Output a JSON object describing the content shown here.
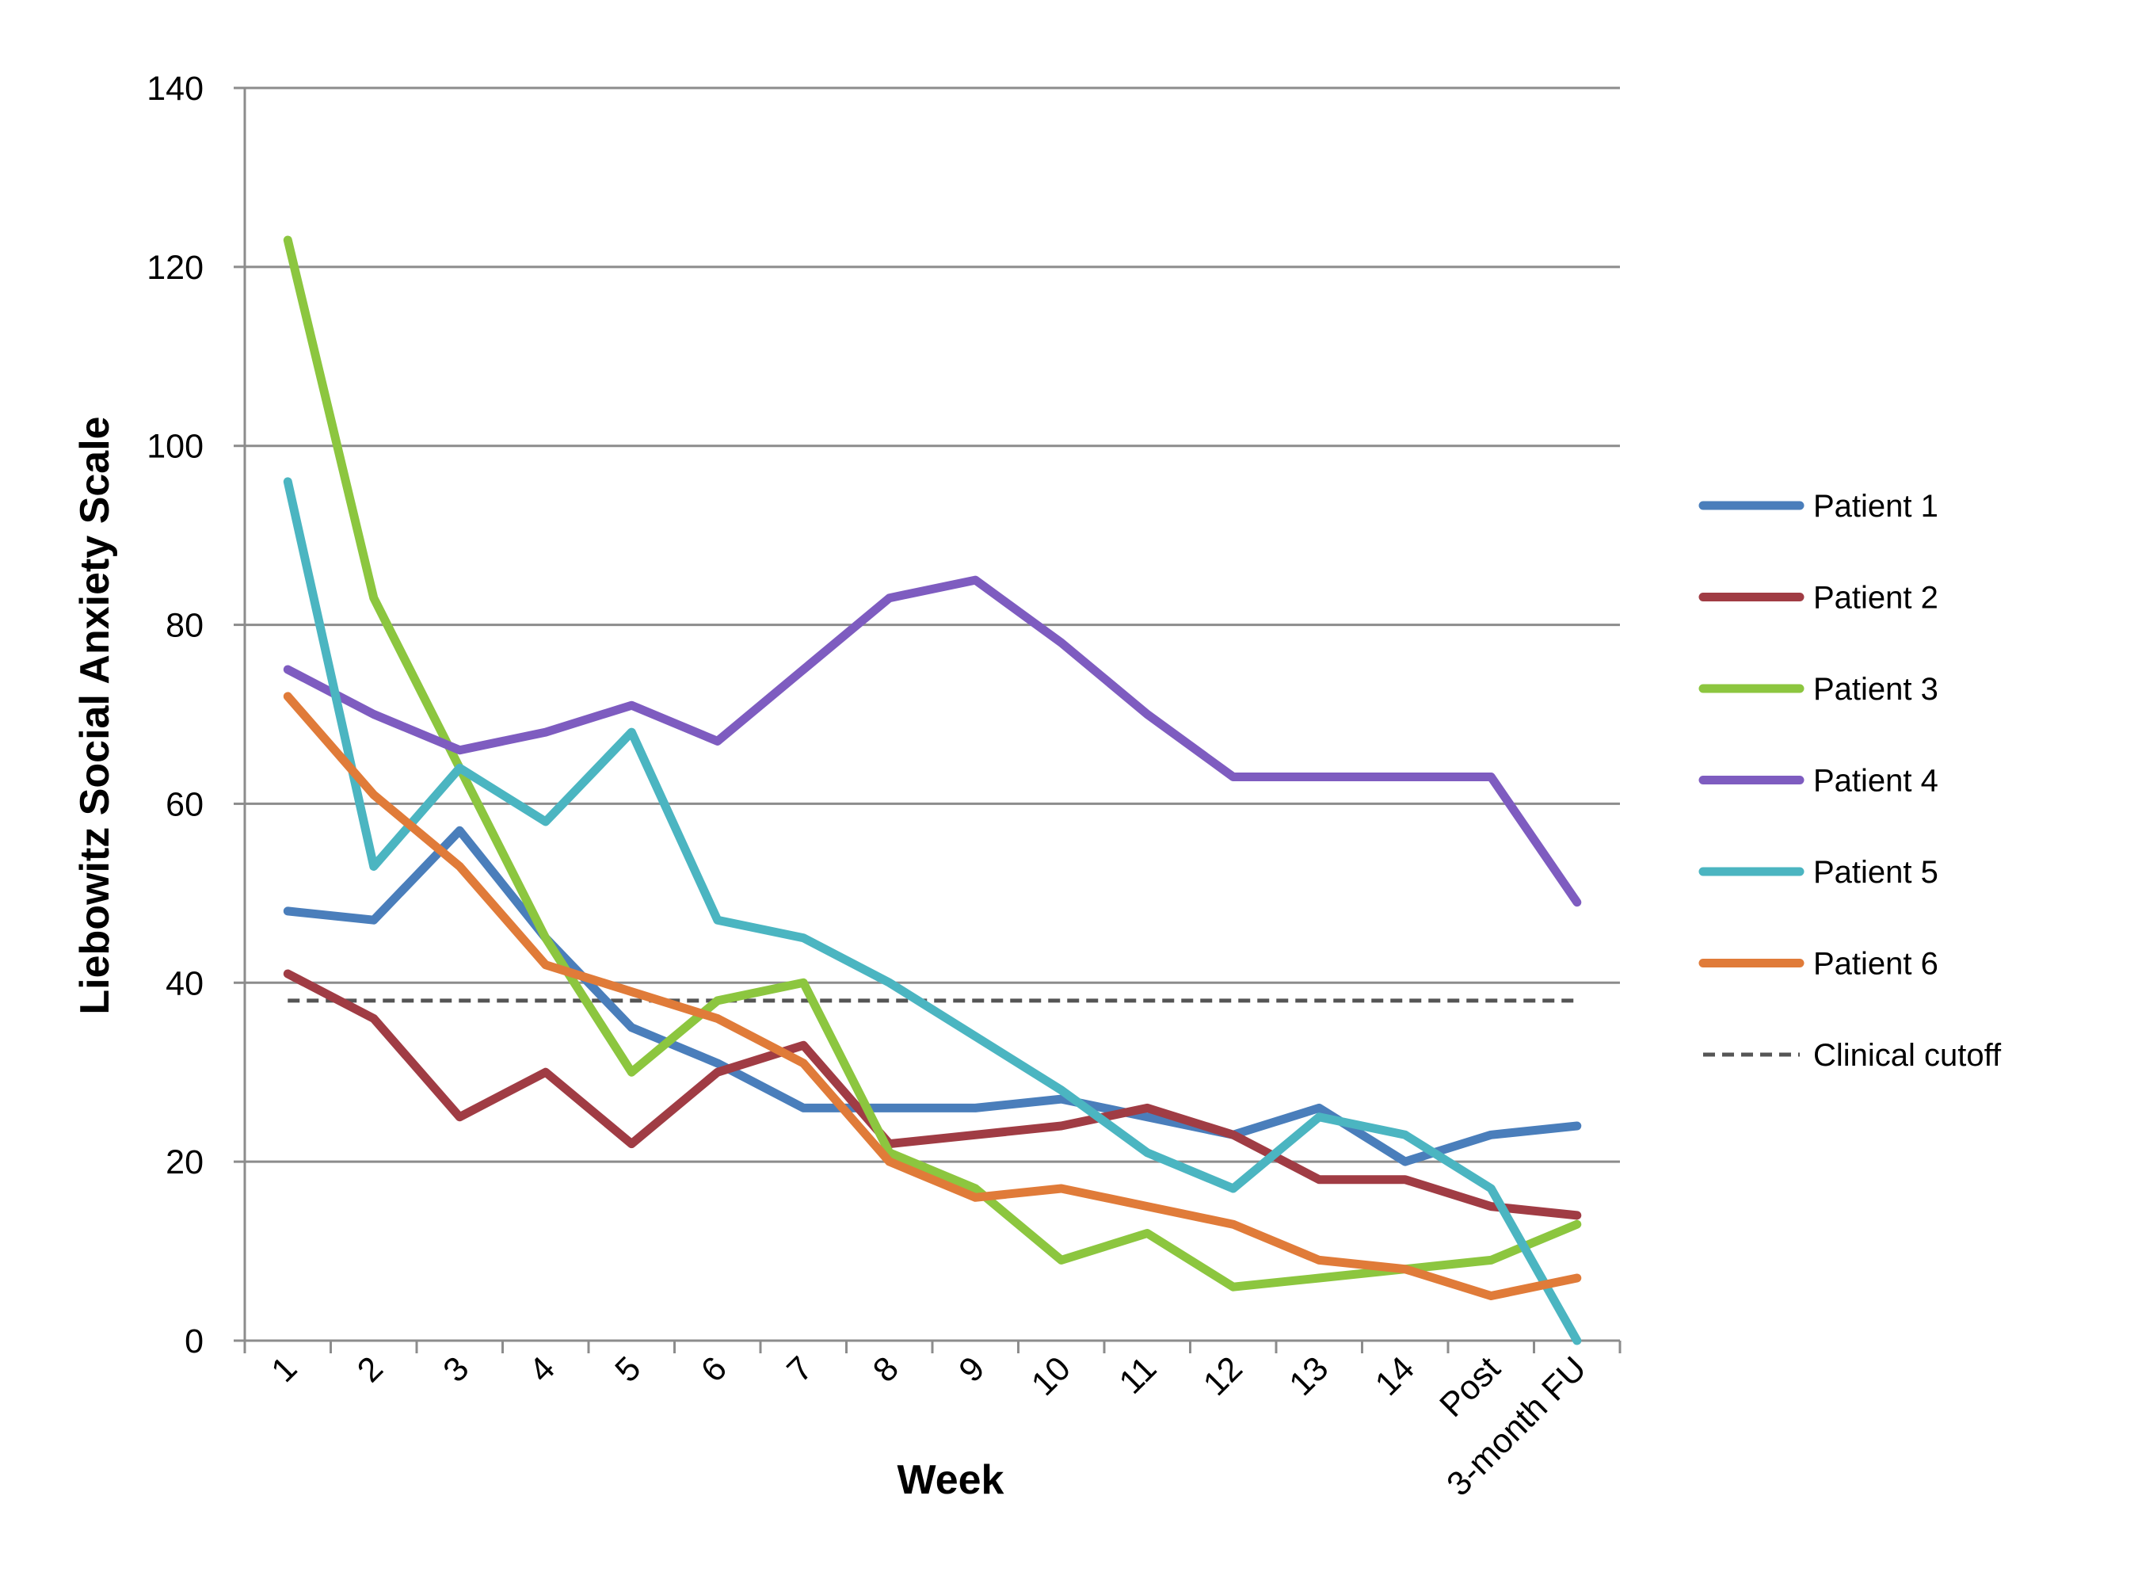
{
  "chart_data": {
    "type": "line",
    "xlabel": "Week",
    "ylabel": "Liebowitz Social Anxiety Scale",
    "ylim": [
      0,
      140
    ],
    "yticks": [
      0,
      20,
      40,
      60,
      80,
      100,
      120,
      140
    ],
    "categories": [
      "1",
      "2",
      "3",
      "4",
      "5",
      "6",
      "7",
      "8",
      "9",
      "10",
      "11",
      "12",
      "13",
      "14",
      "Post",
      "3-month FU"
    ],
    "grid": "horizontal",
    "legend_position": "right",
    "series": [
      {
        "name": "Patient 1",
        "color": "#4a7ebb",
        "values": [
          48,
          47,
          57,
          45,
          35,
          31,
          26,
          26,
          26,
          27,
          25,
          23,
          26,
          20,
          23,
          24
        ]
      },
      {
        "name": "Patient 2",
        "color": "#a03c44",
        "values": [
          41,
          36,
          25,
          30,
          22,
          30,
          33,
          22,
          23,
          24,
          26,
          23,
          18,
          18,
          15,
          14
        ]
      },
      {
        "name": "Patient 3",
        "color": "#8cc63f",
        "values": [
          123,
          83,
          64,
          45,
          30,
          38,
          40,
          21,
          17,
          9,
          12,
          6,
          7,
          8,
          9,
          13
        ]
      },
      {
        "name": "Patient 4",
        "color": "#7e5cc0",
        "values": [
          75,
          70,
          66,
          68,
          71,
          67,
          75,
          83,
          85,
          78,
          70,
          63,
          63,
          63,
          63,
          49
        ]
      },
      {
        "name": "Patient 5",
        "color": "#4bb5c1",
        "values": [
          96,
          53,
          64,
          58,
          68,
          47,
          45,
          40,
          34,
          28,
          21,
          17,
          25,
          23,
          17,
          0
        ]
      },
      {
        "name": "Patient 6",
        "color": "#e07b39",
        "values": [
          72,
          61,
          53,
          42,
          39,
          36,
          31,
          20,
          16,
          17,
          15,
          13,
          9,
          8,
          5,
          7
        ]
      }
    ],
    "reference_line": {
      "name": "Clinical cutoff",
      "value": 38,
      "color": "#555555",
      "style": "dashed"
    }
  }
}
